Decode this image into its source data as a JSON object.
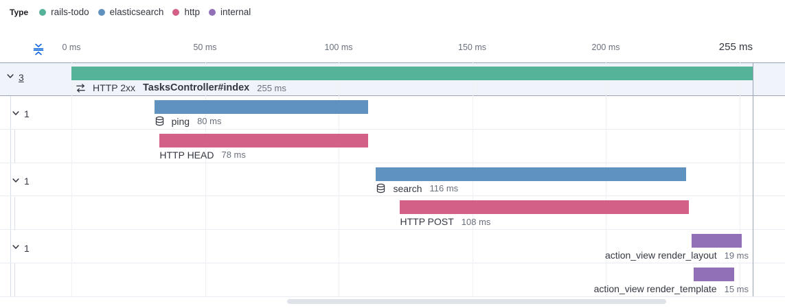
{
  "colors": {
    "rails-todo": "#54B399",
    "elasticsearch": "#6092C0",
    "http": "#D36086",
    "internal": "#9170B8",
    "accent_blue": "#0B64DD",
    "text_dark": "#343741",
    "text_subdued": "#69707D"
  },
  "legend": {
    "title": "Type",
    "items": [
      {
        "label": "rails-todo",
        "color_key": "rails-todo"
      },
      {
        "label": "elasticsearch",
        "color_key": "elasticsearch"
      },
      {
        "label": "http",
        "color_key": "http"
      },
      {
        "label": "internal",
        "color_key": "internal"
      }
    ]
  },
  "axis": {
    "ticks": [
      {
        "label": "0 ms",
        "ms": 0
      },
      {
        "label": "50 ms",
        "ms": 50
      },
      {
        "label": "100 ms",
        "ms": 100
      },
      {
        "label": "150 ms",
        "ms": 150
      },
      {
        "label": "200 ms",
        "ms": 200
      }
    ],
    "end_tick": {
      "label": "255 ms",
      "ms": 255
    },
    "unlabeled_grid_ms": [
      250
    ],
    "total_ms": 255
  },
  "chart_data": {
    "type": "bar",
    "subtype": "trace-waterfall",
    "x_unit": "ms",
    "xlim": [
      0,
      255
    ],
    "x_ticks": [
      "0 ms",
      "50 ms",
      "100 ms",
      "150 ms",
      "200 ms",
      "255 ms"
    ],
    "legend_entries": [
      "rails-todo",
      "elasticsearch",
      "http",
      "internal"
    ],
    "rows": [
      {
        "highlighted": true,
        "expander": {
          "count": "3",
          "underlined": true,
          "level": 0
        },
        "bar": {
          "start_ms": 0,
          "duration_ms": 255,
          "type": "rails-todo"
        },
        "label": {
          "icon": "merge-icon",
          "prefix": "HTTP 2xx",
          "name": "TasksController#index",
          "bold_name": true,
          "duration": "255 ms",
          "align": "left"
        }
      },
      {
        "expander": {
          "count": "1",
          "underlined": false,
          "level": 1
        },
        "bar": {
          "start_ms": 31,
          "duration_ms": 80,
          "type": "elasticsearch"
        },
        "label": {
          "icon": "database-icon",
          "name": "ping",
          "duration": "80 ms",
          "align": "left"
        }
      },
      {
        "bar": {
          "start_ms": 33,
          "duration_ms": 78,
          "type": "http"
        },
        "label": {
          "name": "HTTP HEAD",
          "duration": "78 ms",
          "align": "left"
        }
      },
      {
        "expander": {
          "count": "1",
          "underlined": false,
          "level": 1
        },
        "bar": {
          "start_ms": 114,
          "duration_ms": 116,
          "type": "elasticsearch"
        },
        "label": {
          "icon": "database-icon",
          "name": "search",
          "duration": "116 ms",
          "align": "left"
        }
      },
      {
        "bar": {
          "start_ms": 123,
          "duration_ms": 108,
          "type": "http"
        },
        "label": {
          "name": "HTTP POST",
          "duration": "108 ms",
          "align": "left"
        }
      },
      {
        "expander": {
          "count": "1",
          "underlined": false,
          "level": 1
        },
        "bar": {
          "start_ms": 232,
          "duration_ms": 19,
          "type": "internal"
        },
        "label": {
          "name": "action_view render_layout",
          "duration": "19 ms",
          "align": "right"
        }
      },
      {
        "bar": {
          "start_ms": 233,
          "duration_ms": 15,
          "type": "internal"
        },
        "label": {
          "name": "action_view render_template",
          "duration": "15 ms",
          "align": "right"
        }
      }
    ]
  }
}
